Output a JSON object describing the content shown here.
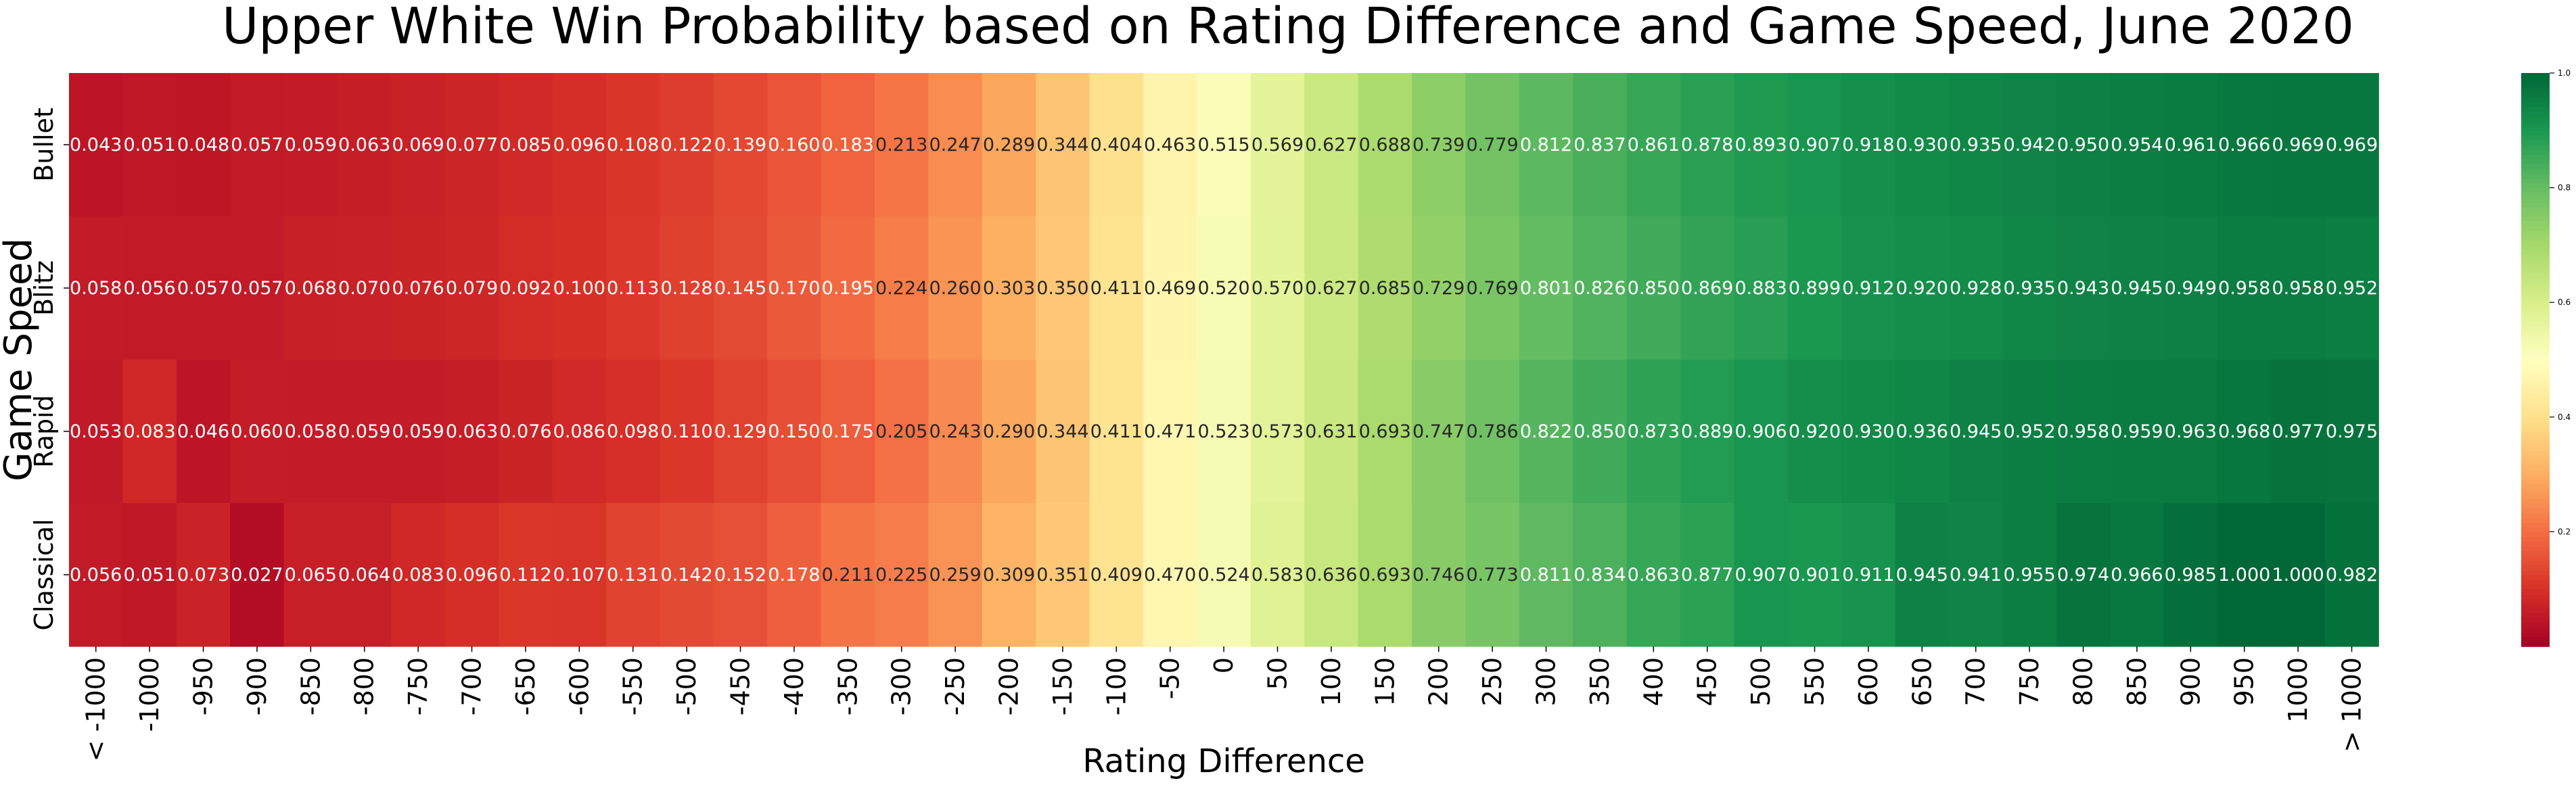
{
  "chart_data": {
    "type": "heatmap",
    "title": "Upper White Win Probability based on Rating Difference and Game Speed, June 2020",
    "xlabel": "Rating Difference",
    "ylabel": "Game Speed",
    "x": [
      "< -1000",
      "-1000",
      "-950",
      "-900",
      "-850",
      "-800",
      "-750",
      "-700",
      "-650",
      "-600",
      "-550",
      "-500",
      "-450",
      "-400",
      "-350",
      "-300",
      "-250",
      "-200",
      "-150",
      "-100",
      "-50",
      "0",
      "50",
      "100",
      "150",
      "200",
      "250",
      "300",
      "350",
      "400",
      "450",
      "500",
      "550",
      "600",
      "650",
      "700",
      "750",
      "800",
      "850",
      "900",
      "950",
      "1000",
      "> 1000"
    ],
    "y": [
      "Bullet",
      "Blitz",
      "Rapid",
      "Classical"
    ],
    "values": [
      [
        0.043,
        0.051,
        0.048,
        0.057,
        0.059,
        0.063,
        0.069,
        0.077,
        0.085,
        0.096,
        0.108,
        0.122,
        0.139,
        0.16,
        0.183,
        0.213,
        0.247,
        0.289,
        0.344,
        0.404,
        0.463,
        0.515,
        0.569,
        0.627,
        0.688,
        0.739,
        0.779,
        0.812,
        0.837,
        0.861,
        0.878,
        0.893,
        0.907,
        0.918,
        0.93,
        0.935,
        0.942,
        0.95,
        0.954,
        0.961,
        0.966,
        0.969,
        0.969
      ],
      [
        0.058,
        0.056,
        0.057,
        0.057,
        0.068,
        0.07,
        0.076,
        0.079,
        0.092,
        0.1,
        0.113,
        0.128,
        0.145,
        0.17,
        0.195,
        0.224,
        0.26,
        0.303,
        0.35,
        0.411,
        0.469,
        0.52,
        0.57,
        0.627,
        0.685,
        0.729,
        0.769,
        0.801,
        0.826,
        0.85,
        0.869,
        0.883,
        0.899,
        0.912,
        0.92,
        0.928,
        0.935,
        0.943,
        0.945,
        0.949,
        0.958,
        0.958,
        0.952
      ],
      [
        0.053,
        0.083,
        0.046,
        0.06,
        0.058,
        0.059,
        0.059,
        0.063,
        0.076,
        0.086,
        0.098,
        0.11,
        0.129,
        0.15,
        0.175,
        0.205,
        0.243,
        0.29,
        0.344,
        0.411,
        0.471,
        0.523,
        0.573,
        0.631,
        0.693,
        0.747,
        0.786,
        0.822,
        0.85,
        0.873,
        0.889,
        0.906,
        0.92,
        0.93,
        0.936,
        0.945,
        0.952,
        0.958,
        0.959,
        0.963,
        0.968,
        0.977,
        0.975
      ],
      [
        0.056,
        0.051,
        0.073,
        0.027,
        0.065,
        0.064,
        0.083,
        0.096,
        0.112,
        0.107,
        0.131,
        0.142,
        0.152,
        0.178,
        0.211,
        0.225,
        0.259,
        0.309,
        0.351,
        0.409,
        0.47,
        0.524,
        0.583,
        0.636,
        0.693,
        0.746,
        0.773,
        0.811,
        0.834,
        0.863,
        0.877,
        0.907,
        0.901,
        0.911,
        0.945,
        0.941,
        0.955,
        0.974,
        0.966,
        0.985,
        1.0,
        1.0,
        0.982
      ]
    ],
    "value_format": "3 decimals",
    "colormap": "RdYlGn",
    "colors": [
      "#a50026",
      "#d73027",
      "#f46d43",
      "#fdae61",
      "#fee08b",
      "#ffffbf",
      "#d9ef8b",
      "#a6d96a",
      "#66bd63",
      "#1a9850",
      "#006837"
    ],
    "colorbar": {
      "range": [
        0,
        1
      ],
      "ticks": [
        "0.2",
        "0.4",
        "0.6",
        "0.8",
        "1.0"
      ]
    }
  }
}
